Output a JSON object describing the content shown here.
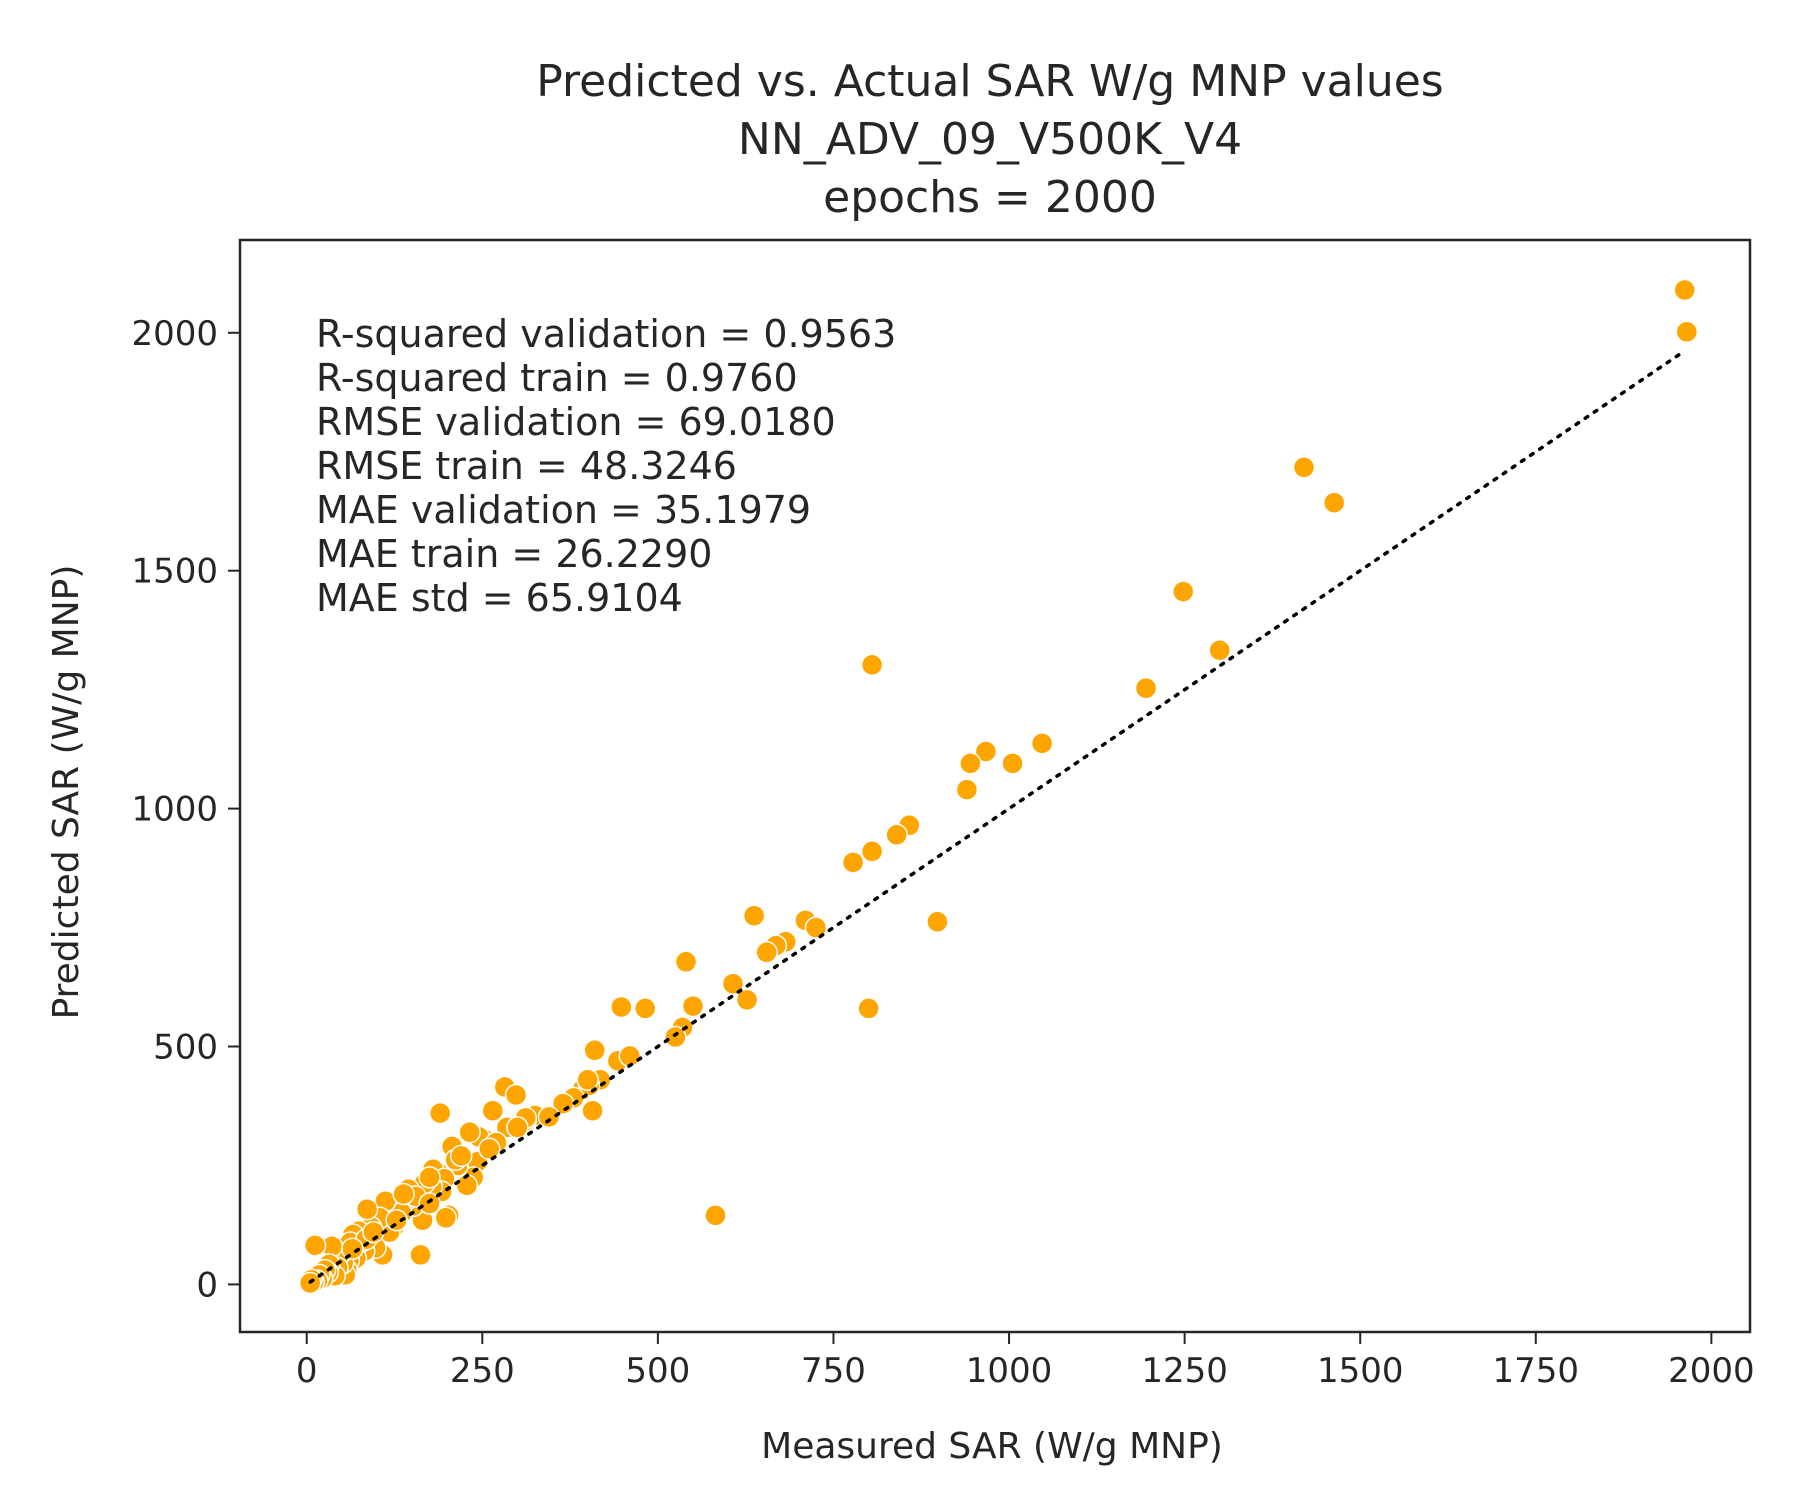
{
  "chart_data": {
    "type": "scatter",
    "title_lines": [
      "Predicted vs. Actual SAR W/g MNP values",
      "NN_ADV_09_V500K_V4",
      "epochs = 2000"
    ],
    "xlabel": "Measured SAR (W/g MNP)",
    "ylabel": "Predicted SAR (W/g MNP)",
    "xlim": [
      -95,
      2055
    ],
    "ylim": [
      -100,
      2195
    ],
    "xticks": [
      0,
      250,
      500,
      750,
      1000,
      1250,
      1500,
      1750,
      2000
    ],
    "yticks": [
      0,
      500,
      1000,
      1500,
      2000
    ],
    "xtick_labels": [
      "0",
      "250",
      "500",
      "750",
      "1000",
      "1250",
      "1500",
      "1750",
      "2000"
    ],
    "ytick_labels": [
      "0",
      "500",
      "1000",
      "1500",
      "2000"
    ],
    "grid": false,
    "point_color": "#ffa500",
    "reference_line": {
      "style": "dotted",
      "color": "#000000",
      "from": [
        5,
        5
      ],
      "to": [
        1960,
        1960
      ]
    },
    "stats": [
      "R-squared validation = 0.9563",
      "R-squared train = 0.9760",
      "RMSE validation = 69.0180",
      "RMSE train = 48.3246",
      "MAE validation = 35.1979",
      "MAE train = 26.2290",
      "MAE std = 65.9104"
    ],
    "points": [
      [
        1962,
        2090
      ],
      [
        1965,
        2002
      ],
      [
        1420,
        1717
      ],
      [
        1463,
        1643
      ],
      [
        1248,
        1456
      ],
      [
        1300,
        1333
      ],
      [
        1195,
        1253
      ],
      [
        805,
        1302
      ],
      [
        1047,
        1137
      ],
      [
        967,
        1120
      ],
      [
        945,
        1095
      ],
      [
        1005,
        1095
      ],
      [
        940,
        1040
      ],
      [
        858,
        965
      ],
      [
        840,
        945
      ],
      [
        805,
        910
      ],
      [
        778,
        887
      ],
      [
        898,
        762
      ],
      [
        710,
        765
      ],
      [
        725,
        750
      ],
      [
        682,
        720
      ],
      [
        668,
        712
      ],
      [
        655,
        698
      ],
      [
        637,
        775
      ],
      [
        800,
        580
      ],
      [
        607,
        632
      ],
      [
        627,
        598
      ],
      [
        540,
        678
      ],
      [
        550,
        585
      ],
      [
        535,
        540
      ],
      [
        525,
        520
      ],
      [
        448,
        583
      ],
      [
        482,
        580
      ],
      [
        443,
        470
      ],
      [
        410,
        492
      ],
      [
        418,
        430
      ],
      [
        407,
        365
      ],
      [
        393,
        410
      ],
      [
        402,
        418
      ],
      [
        380,
        392
      ],
      [
        365,
        380
      ],
      [
        582,
        145
      ],
      [
        282,
        415
      ],
      [
        298,
        398
      ],
      [
        285,
        330
      ],
      [
        265,
        365
      ],
      [
        253,
        305
      ],
      [
        245,
        310
      ],
      [
        232,
        320
      ],
      [
        270,
        298
      ],
      [
        243,
        258
      ],
      [
        237,
        225
      ],
      [
        228,
        208
      ],
      [
        215,
        250
      ],
      [
        207,
        290
      ],
      [
        212,
        262
      ],
      [
        190,
        360
      ],
      [
        187,
        235
      ],
      [
        180,
        242
      ],
      [
        196,
        222
      ],
      [
        202,
        145
      ],
      [
        198,
        140
      ],
      [
        192,
        195
      ],
      [
        178,
        205
      ],
      [
        168,
        213
      ],
      [
        165,
        135
      ],
      [
        162,
        62
      ],
      [
        152,
        165
      ],
      [
        142,
        178
      ],
      [
        135,
        150
      ],
      [
        123,
        118
      ],
      [
        118,
        110
      ],
      [
        112,
        175
      ],
      [
        108,
        62
      ],
      [
        104,
        140
      ],
      [
        98,
        77
      ],
      [
        92,
        120
      ],
      [
        86,
        158
      ],
      [
        82,
        70
      ],
      [
        78,
        90
      ],
      [
        74,
        112
      ],
      [
        70,
        55
      ],
      [
        66,
        105
      ],
      [
        62,
        88
      ],
      [
        60,
        50
      ],
      [
        57,
        30
      ],
      [
        55,
        20
      ],
      [
        52,
        45
      ],
      [
        48,
        65
      ],
      [
        44,
        35
      ],
      [
        40,
        18
      ],
      [
        36,
        80
      ],
      [
        32,
        42
      ],
      [
        30,
        25
      ],
      [
        26,
        30
      ],
      [
        22,
        12
      ],
      [
        18,
        20
      ],
      [
        15,
        8
      ],
      [
        12,
        82
      ],
      [
        10,
        5
      ],
      [
        7,
        10
      ],
      [
        5,
        3
      ],
      [
        145,
        200
      ],
      [
        155,
        185
      ],
      [
        175,
        170
      ],
      [
        325,
        355
      ],
      [
        312,
        345
      ],
      [
        345,
        352
      ],
      [
        312,
        350
      ],
      [
        400,
        430
      ],
      [
        460,
        480
      ],
      [
        85,
        95
      ],
      [
        95,
        110
      ],
      [
        128,
        135
      ],
      [
        138,
        190
      ],
      [
        220,
        270
      ],
      [
        260,
        285
      ],
      [
        300,
        330
      ],
      [
        175,
        225
      ],
      [
        65,
        75
      ]
    ]
  }
}
